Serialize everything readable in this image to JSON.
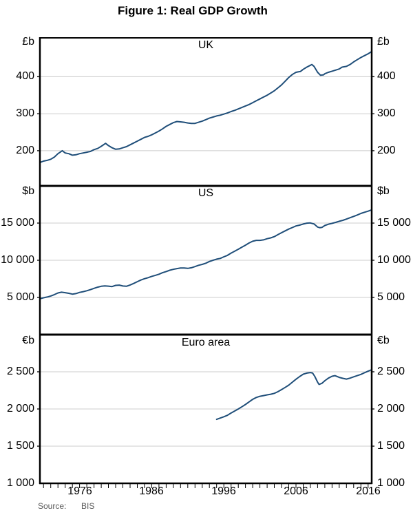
{
  "figure": {
    "title": "Figure 1: Real GDP Growth"
  },
  "source": {
    "label": "Source:",
    "value": "BIS"
  },
  "chart_data": {
    "type": "line",
    "grid": true,
    "line_color": "#1F4E79",
    "gridline_color": "#cccccc",
    "x_axis": {
      "xlim": [
        1970.5,
        2016.5
      ],
      "minor_tick_interval": 1,
      "ticks": [
        {
          "year": 1976,
          "label": "1976"
        },
        {
          "year": 1986,
          "label": "1986"
        },
        {
          "year": 1996,
          "label": "1996"
        },
        {
          "year": 2006,
          "label": "2006"
        },
        {
          "year": 2016,
          "label": "2016"
        }
      ]
    },
    "panels": [
      {
        "title": "UK",
        "unit": "£b",
        "series_name": "UK real GDP",
        "ylim": [
          105,
          505
        ],
        "gridlines": [
          {
            "value": 200,
            "label": "200"
          },
          {
            "value": 300,
            "label": "300"
          },
          {
            "value": 400,
            "label": "400"
          }
        ],
        "series": [
          [
            1970.5,
            168
          ],
          [
            1971,
            172
          ],
          [
            1971.5,
            174
          ],
          [
            1972,
            177
          ],
          [
            1972.5,
            183
          ],
          [
            1973,
            192
          ],
          [
            1973.6,
            200
          ],
          [
            1974,
            194
          ],
          [
            1974.5,
            192
          ],
          [
            1975,
            188
          ],
          [
            1975.5,
            189
          ],
          [
            1976,
            192
          ],
          [
            1976.5,
            194
          ],
          [
            1977,
            196
          ],
          [
            1977.5,
            198
          ],
          [
            1978,
            203
          ],
          [
            1978.5,
            206
          ],
          [
            1979,
            212
          ],
          [
            1979.6,
            220
          ],
          [
            1980,
            214
          ],
          [
            1980.5,
            208
          ],
          [
            1981,
            204
          ],
          [
            1981.5,
            205
          ],
          [
            1982,
            208
          ],
          [
            1982.5,
            211
          ],
          [
            1983,
            216
          ],
          [
            1983.5,
            221
          ],
          [
            1984,
            226
          ],
          [
            1984.5,
            231
          ],
          [
            1985,
            236
          ],
          [
            1985.5,
            239
          ],
          [
            1986,
            243
          ],
          [
            1986.5,
            248
          ],
          [
            1987,
            253
          ],
          [
            1987.5,
            259
          ],
          [
            1988,
            266
          ],
          [
            1988.5,
            271
          ],
          [
            1989,
            276
          ],
          [
            1989.5,
            279
          ],
          [
            1990,
            278
          ],
          [
            1990.5,
            277
          ],
          [
            1991,
            275
          ],
          [
            1991.5,
            274
          ],
          [
            1992,
            274
          ],
          [
            1992.5,
            277
          ],
          [
            1993,
            280
          ],
          [
            1993.5,
            284
          ],
          [
            1994,
            288
          ],
          [
            1994.5,
            291
          ],
          [
            1995,
            294
          ],
          [
            1995.5,
            296
          ],
          [
            1996,
            299
          ],
          [
            1996.5,
            302
          ],
          [
            1997,
            306
          ],
          [
            1997.5,
            309
          ],
          [
            1998,
            313
          ],
          [
            1998.5,
            317
          ],
          [
            1999,
            321
          ],
          [
            1999.5,
            325
          ],
          [
            2000,
            330
          ],
          [
            2000.5,
            335
          ],
          [
            2001,
            340
          ],
          [
            2001.5,
            345
          ],
          [
            2002,
            350
          ],
          [
            2002.5,
            356
          ],
          [
            2003,
            362
          ],
          [
            2003.5,
            370
          ],
          [
            2004,
            378
          ],
          [
            2004.5,
            388
          ],
          [
            2005,
            398
          ],
          [
            2005.5,
            406
          ],
          [
            2006,
            412
          ],
          [
            2006.3,
            413
          ],
          [
            2006.6,
            414
          ],
          [
            2007,
            420
          ],
          [
            2007.5,
            426
          ],
          [
            2008,
            431
          ],
          [
            2008.2,
            433
          ],
          [
            2008.5,
            428
          ],
          [
            2009,
            412
          ],
          [
            2009.4,
            404
          ],
          [
            2009.8,
            405
          ],
          [
            2010,
            408
          ],
          [
            2010.5,
            412
          ],
          [
            2011,
            415
          ],
          [
            2011.5,
            418
          ],
          [
            2012,
            421
          ],
          [
            2012.4,
            426
          ],
          [
            2013,
            428
          ],
          [
            2013.5,
            433
          ],
          [
            2014,
            440
          ],
          [
            2014.5,
            446
          ],
          [
            2015,
            452
          ],
          [
            2015.5,
            457
          ],
          [
            2016,
            462
          ],
          [
            2016.5,
            468
          ]
        ]
      },
      {
        "title": "US",
        "unit": "$b",
        "series_name": "US real GDP",
        "ylim": [
          0,
          20000
        ],
        "gridlines": [
          {
            "value": 5000,
            "label": "5 000"
          },
          {
            "value": 10000,
            "label": "10 000"
          },
          {
            "value": 15000,
            "label": "15 000"
          }
        ],
        "series": [
          [
            1970.5,
            4820
          ],
          [
            1971,
            4950
          ],
          [
            1971.5,
            5060
          ],
          [
            1972,
            5190
          ],
          [
            1972.5,
            5380
          ],
          [
            1973,
            5600
          ],
          [
            1973.5,
            5700
          ],
          [
            1974,
            5640
          ],
          [
            1974.5,
            5560
          ],
          [
            1975,
            5440
          ],
          [
            1975.5,
            5520
          ],
          [
            1976,
            5680
          ],
          [
            1976.5,
            5780
          ],
          [
            1977,
            5900
          ],
          [
            1977.5,
            6050
          ],
          [
            1978,
            6220
          ],
          [
            1978.5,
            6380
          ],
          [
            1979,
            6500
          ],
          [
            1979.5,
            6550
          ],
          [
            1980,
            6520
          ],
          [
            1980.5,
            6460
          ],
          [
            1981,
            6620
          ],
          [
            1981.5,
            6660
          ],
          [
            1982,
            6540
          ],
          [
            1982.5,
            6500
          ],
          [
            1983,
            6680
          ],
          [
            1983.5,
            6880
          ],
          [
            1984,
            7120
          ],
          [
            1984.5,
            7340
          ],
          [
            1985,
            7520
          ],
          [
            1985.5,
            7660
          ],
          [
            1986,
            7830
          ],
          [
            1986.5,
            7970
          ],
          [
            1987,
            8120
          ],
          [
            1987.5,
            8320
          ],
          [
            1988,
            8480
          ],
          [
            1988.5,
            8660
          ],
          [
            1989,
            8780
          ],
          [
            1989.5,
            8880
          ],
          [
            1990,
            8950
          ],
          [
            1990.5,
            8960
          ],
          [
            1991,
            8910
          ],
          [
            1991.5,
            8990
          ],
          [
            1992,
            9150
          ],
          [
            1992.5,
            9320
          ],
          [
            1993,
            9440
          ],
          [
            1993.5,
            9600
          ],
          [
            1994,
            9830
          ],
          [
            1994.5,
            10000
          ],
          [
            1995,
            10150
          ],
          [
            1995.5,
            10250
          ],
          [
            1996,
            10460
          ],
          [
            1996.5,
            10660
          ],
          [
            1997,
            10960
          ],
          [
            1997.5,
            11210
          ],
          [
            1998,
            11480
          ],
          [
            1998.5,
            11760
          ],
          [
            1999,
            12030
          ],
          [
            1999.5,
            12320
          ],
          [
            2000,
            12560
          ],
          [
            2000.5,
            12680
          ],
          [
            2001,
            12680
          ],
          [
            2001.5,
            12740
          ],
          [
            2002,
            12900
          ],
          [
            2002.5,
            13010
          ],
          [
            2003,
            13180
          ],
          [
            2003.5,
            13450
          ],
          [
            2004,
            13700
          ],
          [
            2004.5,
            13950
          ],
          [
            2005,
            14190
          ],
          [
            2005.5,
            14400
          ],
          [
            2006,
            14610
          ],
          [
            2006.5,
            14720
          ],
          [
            2007,
            14870
          ],
          [
            2007.5,
            14990
          ],
          [
            2008,
            15020
          ],
          [
            2008.5,
            14880
          ],
          [
            2009,
            14460
          ],
          [
            2009.3,
            14380
          ],
          [
            2009.6,
            14420
          ],
          [
            2010,
            14680
          ],
          [
            2010.5,
            14840
          ],
          [
            2011,
            14960
          ],
          [
            2011.5,
            15090
          ],
          [
            2012,
            15240
          ],
          [
            2012.5,
            15370
          ],
          [
            2013,
            15540
          ],
          [
            2013.5,
            15720
          ],
          [
            2014,
            15900
          ],
          [
            2014.5,
            16080
          ],
          [
            2015,
            16300
          ],
          [
            2015.5,
            16450
          ],
          [
            2016,
            16600
          ],
          [
            2016.5,
            16780
          ]
        ]
      },
      {
        "title": "Euro area",
        "unit": "€b",
        "series_name": "Euro area real GDP",
        "ylim": [
          1000,
          3000
        ],
        "axis_label": "1 000",
        "gridlines": [
          {
            "value": 1500,
            "label": "1 500"
          },
          {
            "value": 2000,
            "label": "2 000"
          },
          {
            "value": 2500,
            "label": "2 500"
          }
        ],
        "series": [
          [
            1995,
            1860
          ],
          [
            1995.5,
            1878
          ],
          [
            1996,
            1895
          ],
          [
            1996.5,
            1915
          ],
          [
            1997,
            1945
          ],
          [
            1997.5,
            1972
          ],
          [
            1998,
            2000
          ],
          [
            1998.5,
            2030
          ],
          [
            1999,
            2060
          ],
          [
            1999.5,
            2095
          ],
          [
            2000,
            2130
          ],
          [
            2000.5,
            2155
          ],
          [
            2001,
            2170
          ],
          [
            2001.5,
            2180
          ],
          [
            2002,
            2190
          ],
          [
            2002.5,
            2198
          ],
          [
            2003,
            2210
          ],
          [
            2003.5,
            2232
          ],
          [
            2004,
            2260
          ],
          [
            2004.5,
            2290
          ],
          [
            2005,
            2320
          ],
          [
            2005.5,
            2360
          ],
          [
            2006,
            2400
          ],
          [
            2006.5,
            2435
          ],
          [
            2007,
            2468
          ],
          [
            2007.5,
            2482
          ],
          [
            2008,
            2490
          ],
          [
            2008.3,
            2483
          ],
          [
            2008.6,
            2440
          ],
          [
            2009,
            2360
          ],
          [
            2009.2,
            2330
          ],
          [
            2009.6,
            2345
          ],
          [
            2010,
            2380
          ],
          [
            2010.5,
            2415
          ],
          [
            2011,
            2440
          ],
          [
            2011.4,
            2448
          ],
          [
            2012,
            2425
          ],
          [
            2012.5,
            2412
          ],
          [
            2013,
            2402
          ],
          [
            2013.5,
            2415
          ],
          [
            2014,
            2432
          ],
          [
            2014.5,
            2448
          ],
          [
            2015,
            2465
          ],
          [
            2015.5,
            2487
          ],
          [
            2016,
            2508
          ],
          [
            2016.5,
            2528
          ]
        ]
      }
    ]
  }
}
